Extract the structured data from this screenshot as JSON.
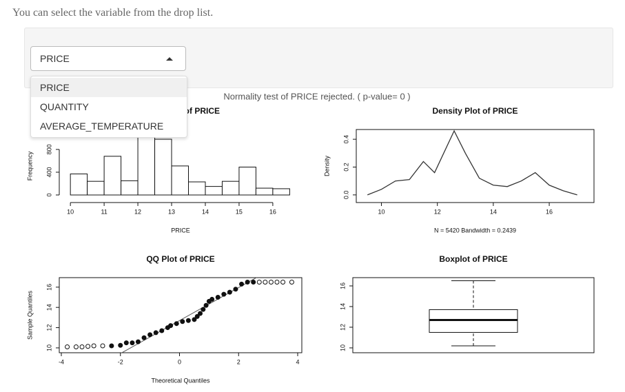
{
  "intro": "You can select the variable from the drop list.",
  "select": {
    "selected": "PRICE",
    "options": [
      "PRICE",
      "QUANTITY",
      "AVERAGE_TEMPERATURE"
    ]
  },
  "test_result": "Normality test of PRICE rejected. ( p-value= 0 )",
  "chart_data": [
    {
      "type": "histogram",
      "title": "Histogram of PRICE",
      "xlabel": "PRICE",
      "ylabel": "Frequency",
      "bins": [
        10,
        10.5,
        11,
        11.5,
        12,
        12.5,
        13,
        13.5,
        14,
        14.5,
        15,
        15.5,
        16,
        16.5
      ],
      "values": [
        370,
        240,
        680,
        250,
        1050,
        980,
        510,
        230,
        150,
        240,
        490,
        120,
        110
      ],
      "xlim": [
        9.67,
        16.86
      ],
      "ylim": [
        -133,
        1150
      ],
      "xticks": [
        10,
        11,
        12,
        13,
        14,
        15,
        16
      ],
      "yticks": [
        0,
        400,
        800
      ],
      "color": "#ffffff"
    },
    {
      "type": "line",
      "title": "Density Plot of PRICE",
      "xlabel": "N = 5420   Bandwidth = 0.2439",
      "ylabel": "Density",
      "x": [
        9.5,
        10,
        10.5,
        11,
        11.5,
        11.9,
        12.6,
        13,
        13.5,
        14,
        14.5,
        15,
        15.5,
        16,
        16.5,
        17
      ],
      "values": [
        0,
        0.04,
        0.1,
        0.11,
        0.24,
        0.16,
        0.46,
        0.3,
        0.12,
        0.07,
        0.06,
        0.1,
        0.16,
        0.07,
        0.03,
        0
      ],
      "xlim": [
        9.1,
        17.6
      ],
      "ylim": [
        -0.055,
        0.47
      ],
      "xticks": [
        10,
        12,
        14,
        16
      ],
      "yticks": [
        {
          "value": 0,
          "label": "0.0"
        },
        {
          "value": 0.2,
          "label": "0.2"
        },
        {
          "value": 0.4,
          "label": "0.4"
        }
      ],
      "color": "#333333"
    },
    {
      "type": "scatter",
      "title": "QQ Plot of PRICE",
      "xlabel": "Theoretical Quantiles",
      "ylabel": "Sample Quantiles",
      "x": [
        -3.8,
        -3.5,
        -3.3,
        -3.1,
        -2.9,
        -2.6,
        -2.3,
        -2.0,
        -1.8,
        -1.6,
        -1.4,
        -1.2,
        -1.0,
        -0.8,
        -0.6,
        -0.4,
        -0.3,
        -0.1,
        0.1,
        0.3,
        0.5,
        0.6,
        0.7,
        0.8,
        0.9,
        1.0,
        1.1,
        1.3,
        1.5,
        1.7,
        1.9,
        2.1,
        2.3,
        2.5,
        2.7,
        2.9,
        3.1,
        3.3,
        3.5,
        3.8
      ],
      "values": [
        10.1,
        10.1,
        10.1,
        10.15,
        10.2,
        10.2,
        10.2,
        10.25,
        10.5,
        10.5,
        10.6,
        11.0,
        11.3,
        11.5,
        11.7,
        12.0,
        12.2,
        12.4,
        12.6,
        12.7,
        12.8,
        13.1,
        13.4,
        13.8,
        14.2,
        14.6,
        14.8,
        15.0,
        15.3,
        15.5,
        15.8,
        16.3,
        16.5,
        16.5,
        16.5,
        16.5,
        16.5,
        16.5,
        16.5,
        16.5
      ],
      "reference_line": {
        "intercept": 12.7,
        "slope": 1.63
      },
      "xlim": [
        -4.07,
        4.14
      ],
      "ylim": [
        9.52,
        16.94
      ],
      "xticks": [
        -4,
        -2,
        0,
        2,
        4
      ],
      "yticks": [
        10,
        12,
        14,
        16
      ],
      "color": "#111111"
    },
    {
      "type": "box",
      "title": "Boxplot of PRICE",
      "min": 10.2,
      "q1": 11.5,
      "median": 12.7,
      "q3": 13.7,
      "max": 16.5,
      "ylim": [
        9.53,
        16.8
      ],
      "yticks": [
        10,
        12,
        14,
        16
      ],
      "color": "#111111"
    }
  ]
}
